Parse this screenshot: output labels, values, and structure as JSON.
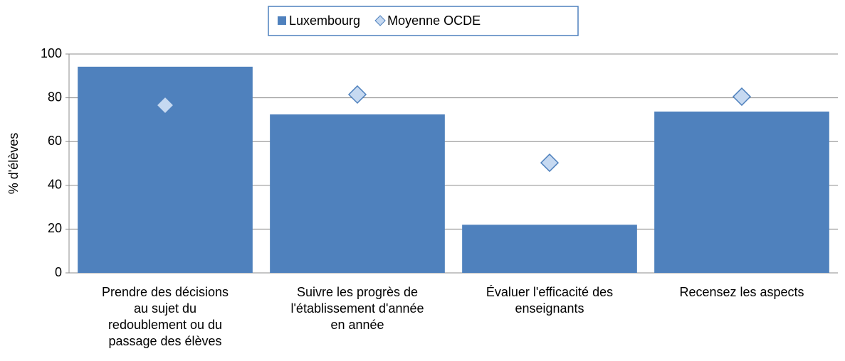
{
  "chart_data": {
    "type": "bar",
    "y_label": "% d'élèves",
    "categories": [
      "Prendre des décisions\nau sujet du\nredoublement ou du\npassage des élèves",
      "Suivre les progrès de\nl'établissement d'année\nen année",
      "Évaluer l'efficacité des\nenseignants",
      "Recensez les aspects"
    ],
    "series": [
      {
        "name": "Luxembourg",
        "type": "bar",
        "color": "#4f81bd",
        "values": [
          94.2,
          72.4,
          22,
          73.7
        ]
      },
      {
        "name": "Moyenne OCDE",
        "type": "diamond",
        "color": "#c6d9f1",
        "values": [
          76.6,
          81.5,
          50.3,
          80.5
        ]
      }
    ],
    "ylim": [
      0,
      100
    ],
    "yticks": [
      0,
      20,
      40,
      60,
      80,
      100
    ],
    "grid": true,
    "legend": "top"
  }
}
